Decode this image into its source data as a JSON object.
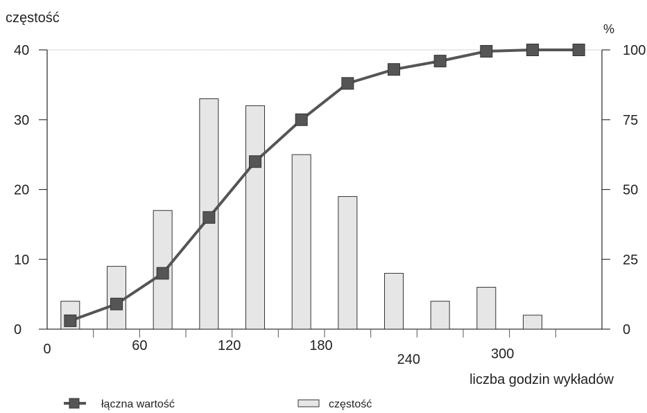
{
  "chart_data": {
    "type": "bar",
    "y_left_label": "częstość",
    "y_right_label": "%",
    "x_label": "liczba godzin wykładów",
    "x_ticks": [
      "0",
      "60",
      "120",
      "180",
      "240",
      "300"
    ],
    "y_left_ticks": [
      "0",
      "10",
      "20",
      "30",
      "40"
    ],
    "y_right_ticks": [
      "0",
      "25",
      "50",
      "75",
      "100"
    ],
    "y_left_range": [
      0,
      40
    ],
    "y_right_range": [
      0,
      100
    ],
    "x_range": [
      0,
      360
    ],
    "grid": false,
    "legend_position": "bottom",
    "series": [
      {
        "name": "częstość",
        "kind": "bar",
        "color": "#e6e6e6",
        "x": [
          15,
          45,
          75,
          105,
          135,
          165,
          195,
          225,
          255,
          285,
          315
        ],
        "values": [
          4,
          9,
          17,
          33,
          32,
          25,
          19,
          8,
          4,
          6,
          2
        ]
      },
      {
        "name": "łączna wartość",
        "kind": "line",
        "color": "#555555",
        "x": [
          15,
          45,
          75,
          105,
          135,
          165,
          195,
          225,
          255,
          285,
          315,
          345
        ],
        "values": [
          3,
          9,
          20,
          40,
          60,
          75,
          88,
          93,
          96,
          99.5,
          100,
          100
        ]
      }
    ]
  }
}
